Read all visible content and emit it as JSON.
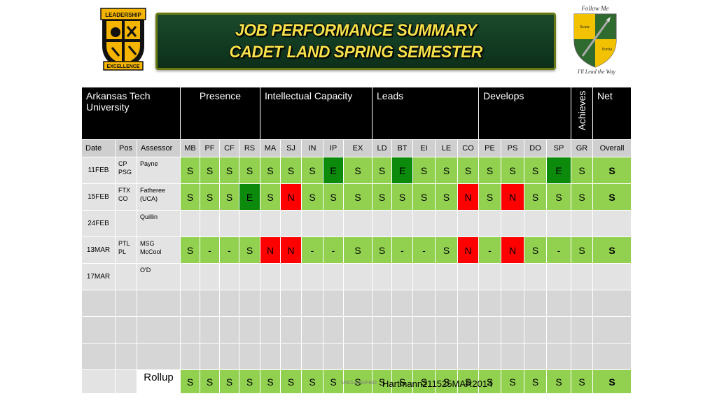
{
  "banner": {
    "line1": "JOB PERFORMANCE SUMMARY",
    "line2": "CADET LAND SPRING SEMESTER"
  },
  "badge_left": {
    "top_text": "LEADERSHIP",
    "bottom_text": "EXCELLENCE"
  },
  "crest_right": {
    "top_text": "Follow Me",
    "left_text": "Scuta",
    "right_text": "Fortia",
    "bottom_text": "I'll Lead the Way"
  },
  "colors": {
    "green": "#92d050",
    "dark_green": "#0b8a0b",
    "red": "#ff0000",
    "banner": "#123b22",
    "banner_text": "#f6e24a"
  },
  "table": {
    "header": {
      "unit": "Arkansas Tech University",
      "presence": "Presence",
      "intellectual": "Intellectual Capacity",
      "leads": "Leads",
      "develops": "Develops",
      "achieves": "Achieves",
      "net": "Net"
    },
    "subheader": [
      "Date",
      "Pos",
      "Assessor",
      "MB",
      "PF",
      "CF",
      "RS",
      "MA",
      "SJ",
      "IN",
      "IP",
      "EX",
      "LD",
      "BT",
      "EI",
      "LE",
      "CO",
      "PE",
      "PS",
      "DO",
      "SP",
      "GR",
      "Overall"
    ],
    "rows": [
      {
        "date": "11FEB",
        "pos": "CP PSG",
        "assessor": "Payne",
        "cells": [
          "S",
          "S",
          "S",
          "S",
          "S",
          "S",
          "S",
          "E",
          "S",
          "S",
          "E",
          "S",
          "S",
          "S",
          "S",
          "S",
          "S",
          "E",
          "S",
          "S"
        ]
      },
      {
        "date": "15FEB",
        "pos": "FTX CO",
        "assessor": "Fatheree (UCA)",
        "cells": [
          "S",
          "S",
          "S",
          "E",
          "S",
          "N",
          "S",
          "S",
          "S",
          "S",
          "S",
          "S",
          "S",
          "N",
          "S",
          "N",
          "S",
          "S",
          "S",
          "S"
        ]
      },
      {
        "date": "24FEB",
        "pos": "",
        "assessor": "Quillin",
        "cells": [
          "",
          "",
          "",
          "",
          "",
          "",
          "",
          "",
          "",
          "",
          "",
          "",
          "",
          "",
          "",
          "",
          "",
          "",
          "",
          ""
        ]
      },
      {
        "date": "13MAR",
        "pos": "PTL PL",
        "assessor": "MSG McCool",
        "cells": [
          "S",
          "-",
          "-",
          "S",
          "N",
          "N",
          "-",
          "-",
          "S",
          "S",
          "-",
          "-",
          "S",
          "N",
          "-",
          "N",
          "S",
          "-",
          "S",
          "S"
        ]
      },
      {
        "date": "17MAR",
        "pos": "",
        "assessor": "O'D",
        "cells": [
          "",
          "",
          "",
          "",
          "",
          "",
          "",
          "",
          "",
          "",
          "",
          "",
          "",
          "",
          "",
          "",
          "",
          "",
          "",
          ""
        ]
      },
      {
        "date": "",
        "pos": "",
        "assessor": "",
        "cells": [
          "",
          "",
          "",
          "",
          "",
          "",
          "",
          "",
          "",
          "",
          "",
          "",
          "",
          "",
          "",
          "",
          "",
          "",
          "",
          ""
        ]
      },
      {
        "date": "",
        "pos": "",
        "assessor": "",
        "cells": [
          "",
          "",
          "",
          "",
          "",
          "",
          "",
          "",
          "",
          "",
          "",
          "",
          "",
          "",
          "",
          "",
          "",
          "",
          "",
          ""
        ]
      },
      {
        "date": "",
        "pos": "",
        "assessor": "",
        "cells": [
          "",
          "",
          "",
          "",
          "",
          "",
          "",
          "",
          "",
          "",
          "",
          "",
          "",
          "",
          "",
          "",
          "",
          "",
          "",
          ""
        ]
      }
    ],
    "rollup": {
      "label": "Rollup",
      "cells": [
        "S",
        "S",
        "S",
        "S",
        "S",
        "S",
        "S",
        "S",
        "S",
        "S",
        "S",
        "S",
        "S",
        "S",
        "S",
        "S",
        "S",
        "S",
        "S",
        "S"
      ]
    }
  },
  "footer": {
    "classification": "UNCLASSIFIED",
    "id": "Hartmann211525MAR2014"
  }
}
